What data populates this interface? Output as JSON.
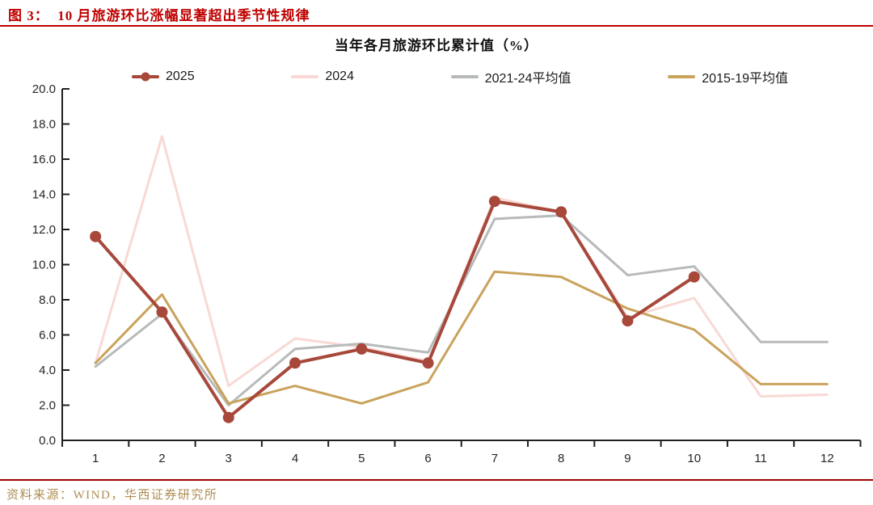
{
  "header": {
    "title": "图 3：  10 月旅游环比涨幅显著超出季节性规律"
  },
  "footer": {
    "source": "资料来源：WIND，华西证券研究所"
  },
  "colors": {
    "header_red": "#C00000",
    "bottom_rule_red": "#9A0000",
    "source_gold": "#AE8D52",
    "axis": "#1F1F1F",
    "tick_label": "#262626"
  },
  "chart_data": {
    "type": "line",
    "title": "当年各月旅游环比累计值（%）",
    "xlabel": "",
    "ylabel": "",
    "x": [
      1,
      2,
      3,
      4,
      5,
      6,
      7,
      8,
      9,
      10,
      11,
      12
    ],
    "ylim": [
      0,
      20
    ],
    "ytick_step": 2,
    "ytick_format_decimals": 1,
    "grid": false,
    "legend_position": "top",
    "series": [
      {
        "name": "2025",
        "color": "#A7483B",
        "marker": true,
        "values": [
          11.6,
          7.3,
          1.3,
          4.4,
          5.2,
          4.4,
          13.6,
          13.0,
          6.8,
          9.3,
          null,
          null
        ]
      },
      {
        "name": "2024",
        "color": "#F8D9D5",
        "marker": false,
        "values": [
          4.4,
          17.3,
          3.1,
          5.8,
          5.3,
          4.5,
          13.8,
          13.0,
          7.0,
          8.1,
          2.5,
          2.6
        ]
      },
      {
        "name": "2021-24平均值",
        "color": "#B7BABA",
        "marker": false,
        "values": [
          4.2,
          7.2,
          2.0,
          5.2,
          5.5,
          5.0,
          12.6,
          12.8,
          9.4,
          9.9,
          5.6,
          5.6
        ]
      },
      {
        "name": "2015-19平均值",
        "color": "#C9A35C",
        "marker": false,
        "values": [
          4.4,
          8.3,
          2.1,
          3.1,
          2.1,
          3.3,
          9.6,
          9.3,
          7.5,
          6.3,
          3.2,
          3.2
        ]
      }
    ],
    "z_order": [
      1,
      2,
      3,
      0
    ]
  }
}
